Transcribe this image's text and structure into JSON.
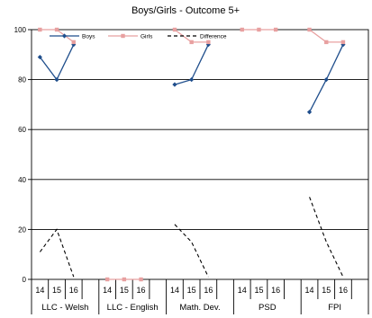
{
  "chart_data": {
    "type": "line",
    "title": "Boys/Girls - Outcome 5+",
    "xlabel": "",
    "ylabel": "",
    "ylim": [
      0,
      100
    ],
    "yticks": [
      0,
      20,
      40,
      60,
      80,
      100
    ],
    "grid": true,
    "legend_position": "top-left",
    "groups": [
      {
        "name": "LLC - Welsh",
        "years": [
          "14",
          "15",
          "16"
        ]
      },
      {
        "name": "LLC - English",
        "years": [
          "14",
          "15",
          "16"
        ]
      },
      {
        "name": "Math. Dev.",
        "years": [
          "14",
          "15",
          "16"
        ]
      },
      {
        "name": "PSD",
        "years": [
          "14",
          "15",
          "16"
        ]
      },
      {
        "name": "FPI",
        "years": [
          "14",
          "15",
          "16"
        ]
      }
    ],
    "series": [
      {
        "name": "Boys",
        "color": "#1f4e8c",
        "style": "solid",
        "marker": "diamond",
        "values": [
          [
            89,
            80,
            94
          ],
          [
            null,
            null,
            null
          ],
          [
            78,
            80,
            94
          ],
          [
            null,
            null,
            null
          ],
          [
            67,
            80,
            94
          ]
        ]
      },
      {
        "name": "Girls",
        "color": "#e8a0a0",
        "style": "solid",
        "marker": "square",
        "values": [
          [
            100,
            100,
            95
          ],
          [
            0,
            0,
            0
          ],
          [
            100,
            95,
            95
          ],
          [
            100,
            100,
            100
          ],
          [
            100,
            95,
            95
          ]
        ]
      },
      {
        "name": "Difference",
        "color": "#000000",
        "style": "dashed",
        "marker": "none",
        "values": [
          [
            11,
            20,
            1
          ],
          [
            null,
            null,
            null
          ],
          [
            22,
            15,
            1
          ],
          [
            null,
            null,
            null
          ],
          [
            33,
            15,
            1
          ]
        ]
      }
    ]
  }
}
